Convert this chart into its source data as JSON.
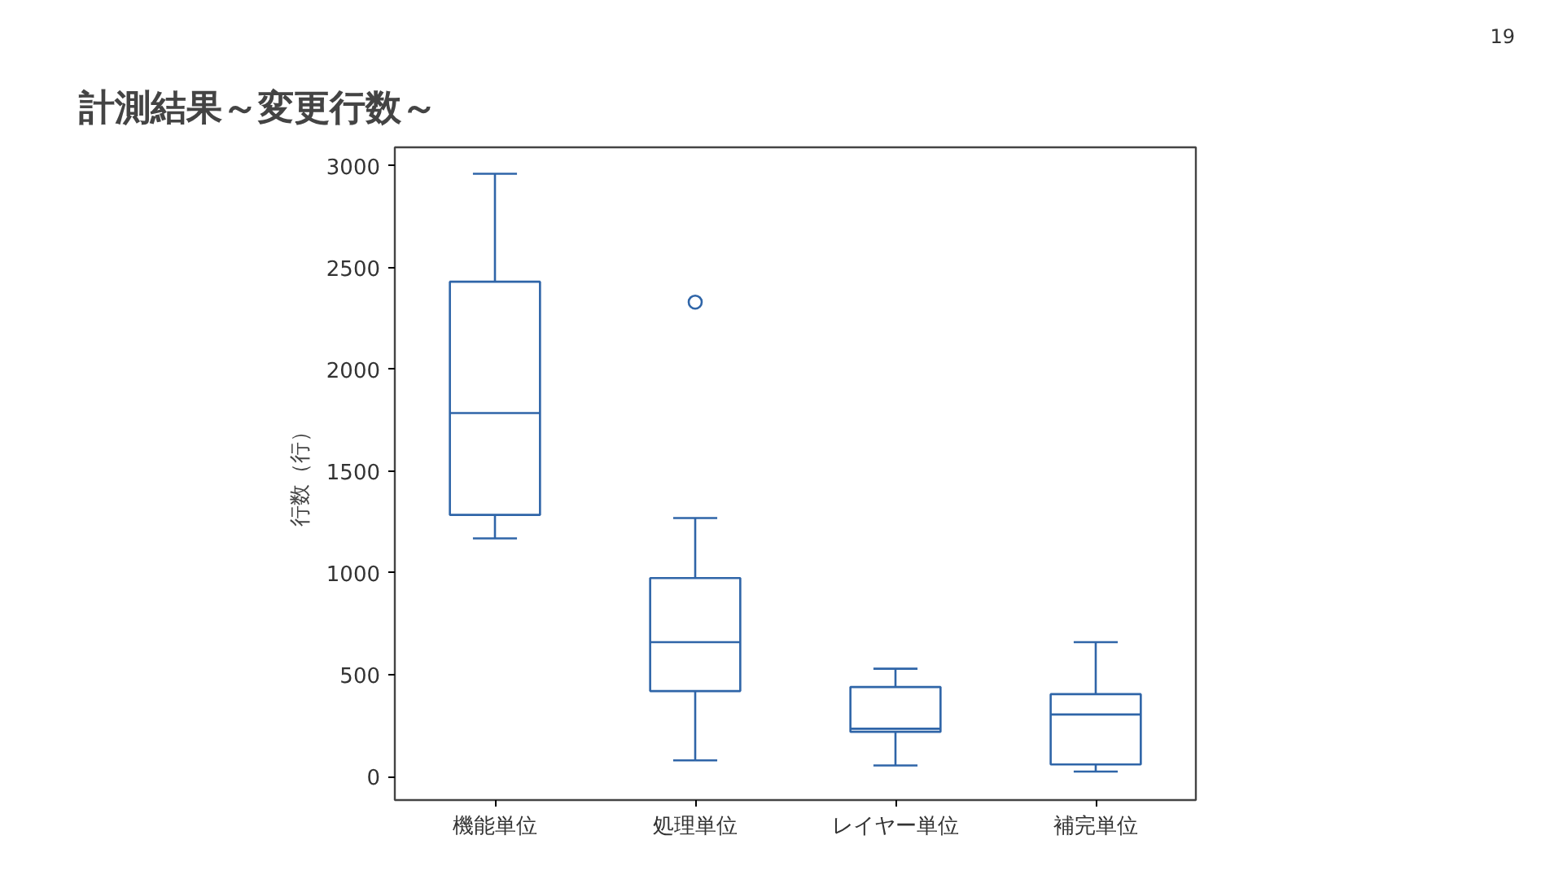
{
  "chart_data": {
    "type": "box",
    "title": "計測結果～変更行数～",
    "ylabel": "行数（行）",
    "annotations": [
      "19"
    ],
    "categories": [
      "機能単位",
      "処理単位",
      "レイヤー単位",
      "補完単位"
    ],
    "color": "#2f65a8",
    "grid": false,
    "marker": "circle",
    "ylim": [
      -115,
      3090
    ],
    "yticks": [
      0,
      500,
      1000,
      1500,
      2000,
      2500,
      3000
    ],
    "boxes": [
      {
        "low": 1170,
        "q1": 1285,
        "median": 1785,
        "q3": 2430,
        "high": 2960
      },
      {
        "low": 80,
        "q1": 420,
        "median": 660,
        "q3": 975,
        "high": 1270,
        "outliers": [
          2330
        ]
      },
      {
        "low": 55,
        "q1": 220,
        "median": 235,
        "q3": 440,
        "high": 530
      },
      {
        "low": 25,
        "q1": 60,
        "median": 305,
        "q3": 405,
        "high": 660
      }
    ]
  }
}
